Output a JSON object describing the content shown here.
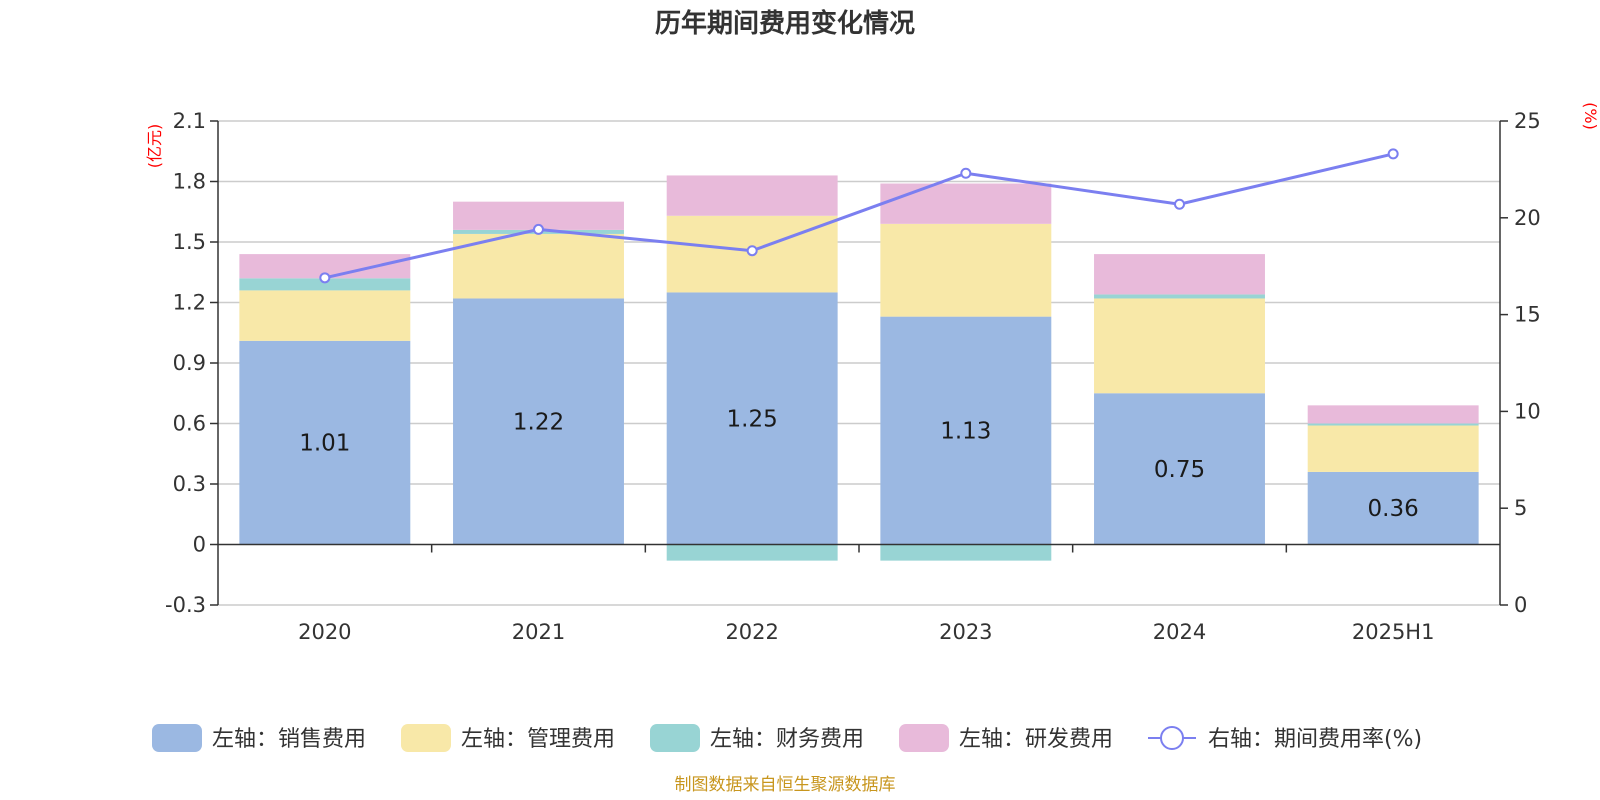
{
  "title": "历年期间费用变化情况",
  "source": "制图数据来自恒生聚源数据库",
  "colors": {
    "sales": "#9bb8e2",
    "admin": "#f8e8a8",
    "finance": "#98d4d4",
    "rd": "#e8bada",
    "rate": "#7b7ff0",
    "grid": "#cccccc",
    "axis": "#333333",
    "unit": "#ff0000",
    "source": "#c8961e"
  },
  "chart_data": {
    "type": "bar",
    "stacked": true,
    "categories": [
      "2020",
      "2021",
      "2022",
      "2023",
      "2024",
      "2025H1"
    ],
    "left_axis": {
      "unit": "(亿元)",
      "ylim": [
        -0.3,
        2.1
      ],
      "ticks": [
        "-0.3",
        "0",
        "0.3",
        "0.6",
        "0.9",
        "1.2",
        "1.5",
        "1.8",
        "2.1"
      ]
    },
    "right_axis": {
      "unit": "(%)",
      "ylim": [
        0,
        25
      ],
      "ticks": [
        "0",
        "5",
        "10",
        "15",
        "20",
        "25"
      ]
    },
    "series": [
      {
        "key": "sales",
        "name": "左轴：销售费用",
        "axis": "left",
        "values": [
          1.01,
          1.22,
          1.25,
          1.13,
          0.75,
          0.36
        ],
        "labels": [
          "1.01",
          "1.22",
          "1.25",
          "1.13",
          "0.75",
          "0.36"
        ]
      },
      {
        "key": "admin",
        "name": "左轴：管理费用",
        "axis": "left",
        "values": [
          0.25,
          0.32,
          0.38,
          0.46,
          0.47,
          0.23
        ]
      },
      {
        "key": "finance",
        "name": "左轴：财务费用",
        "axis": "left",
        "values": [
          0.06,
          0.02,
          -0.08,
          -0.08,
          0.02,
          0.01
        ]
      },
      {
        "key": "rd",
        "name": "左轴：研发费用",
        "axis": "left",
        "values": [
          0.12,
          0.14,
          0.2,
          0.2,
          0.2,
          0.09
        ]
      },
      {
        "key": "rate",
        "name": "右轴：期间费用率(%)",
        "axis": "right",
        "type": "line",
        "values": [
          16.9,
          19.4,
          18.3,
          22.3,
          20.7,
          23.3
        ]
      }
    ],
    "grid": true,
    "legend_position": "bottom"
  }
}
